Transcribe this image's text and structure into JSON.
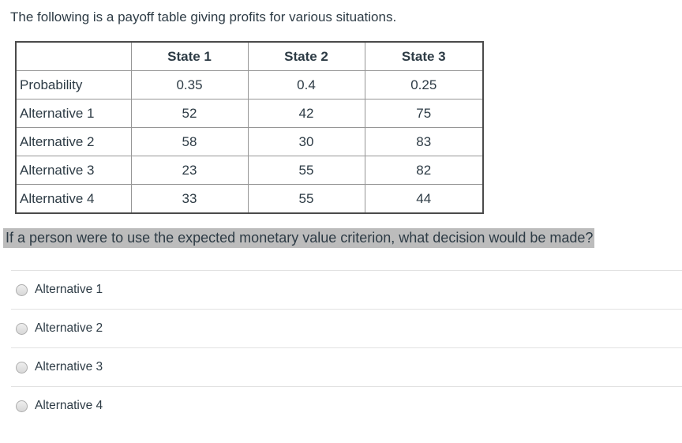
{
  "question": {
    "intro": "The following is a payoff table giving profits for various situations.",
    "prompt": "If a person were to use the expected monetary value criterion, what decision would be made?"
  },
  "table": {
    "headers": [
      "",
      "State 1",
      "State 2",
      "State 3"
    ],
    "rows": [
      {
        "label": "Probability",
        "values": [
          "0.35",
          "0.4",
          "0.25"
        ]
      },
      {
        "label": "Alternative 1",
        "values": [
          "52",
          "42",
          "75"
        ]
      },
      {
        "label": "Alternative 2",
        "values": [
          "58",
          "30",
          "83"
        ]
      },
      {
        "label": "Alternative 3",
        "values": [
          "23",
          "55",
          "82"
        ]
      },
      {
        "label": "Alternative 4",
        "values": [
          "33",
          "55",
          "44"
        ]
      }
    ]
  },
  "answers": [
    {
      "label": "Alternative 1",
      "selected": false
    },
    {
      "label": "Alternative 2",
      "selected": false
    },
    {
      "label": "Alternative 3",
      "selected": false
    },
    {
      "label": "Alternative 4",
      "selected": false
    }
  ],
  "colors": {
    "highlight": "#bcbcbc",
    "text": "#2d3b45",
    "table_outer_border": "#4a4a4a",
    "table_inner_border": "#969696",
    "answer_divider": "#e2e2e2"
  }
}
